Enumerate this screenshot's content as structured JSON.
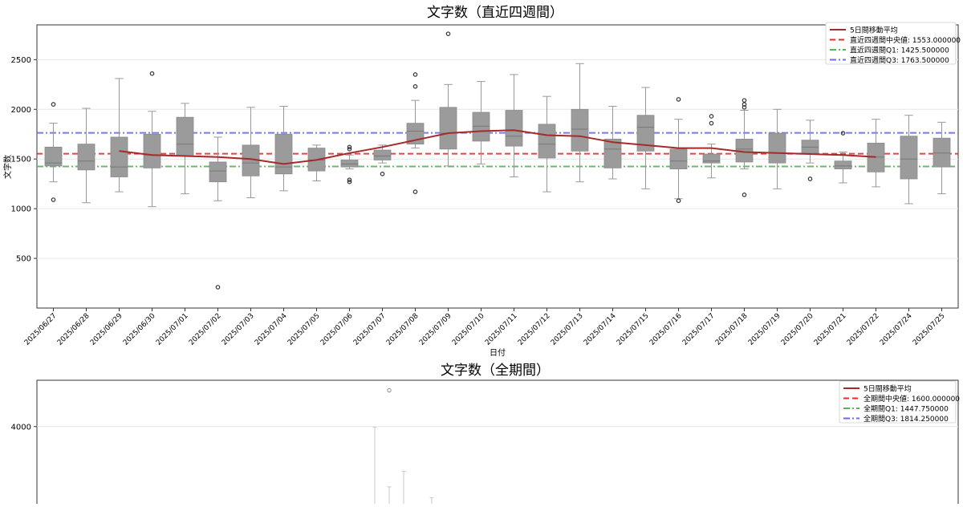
{
  "chart_data": [
    {
      "type": "box",
      "title": "文字数（直近四週間）",
      "xlabel": "日付",
      "ylabel": "文字数",
      "ylim": [
        0,
        2850
      ],
      "yticks": [
        500,
        1000,
        1500,
        2000,
        2500
      ],
      "grid": true,
      "legend_position": "top-right",
      "categories": [
        "2025/06/27",
        "2025/06/28",
        "2025/06/29",
        "2025/06/30",
        "2025/07/01",
        "2025/07/02",
        "2025/07/03",
        "2025/07/04",
        "2025/07/05",
        "2025/07/06",
        "2025/07/07",
        "2025/07/08",
        "2025/07/09",
        "2025/07/10",
        "2025/07/11",
        "2025/07/12",
        "2025/07/13",
        "2025/07/14",
        "2025/07/15",
        "2025/07/16",
        "2025/07/17",
        "2025/07/18",
        "2025/07/19",
        "2025/07/20",
        "2025/07/21",
        "2025/07/22",
        "2025/07/24",
        "2025/07/25"
      ],
      "boxes": [
        {
          "whislo": 1270,
          "q1": 1430,
          "med": 1460,
          "q3": 1620,
          "whishi": 1860,
          "fliers": [
            1090,
            2050
          ]
        },
        {
          "whislo": 1060,
          "q1": 1390,
          "med": 1480,
          "q3": 1650,
          "whishi": 2010,
          "fliers": []
        },
        {
          "whislo": 1170,
          "q1": 1320,
          "med": 1420,
          "q3": 1720,
          "whishi": 2310,
          "fliers": []
        },
        {
          "whislo": 1020,
          "q1": 1410,
          "med": 1540,
          "q3": 1750,
          "whishi": 1980,
          "fliers": [
            2360
          ]
        },
        {
          "whislo": 1150,
          "q1": 1530,
          "med": 1650,
          "q3": 1920,
          "whishi": 2060,
          "fliers": []
        },
        {
          "whislo": 1080,
          "q1": 1270,
          "med": 1380,
          "q3": 1470,
          "whishi": 1720,
          "fliers": [
            210
          ]
        },
        {
          "whislo": 1110,
          "q1": 1330,
          "med": 1460,
          "q3": 1640,
          "whishi": 2020,
          "fliers": []
        },
        {
          "whislo": 1180,
          "q1": 1350,
          "med": 1420,
          "q3": 1750,
          "whishi": 2030,
          "fliers": []
        },
        {
          "whislo": 1280,
          "q1": 1380,
          "med": 1490,
          "q3": 1610,
          "whishi": 1640,
          "fliers": []
        },
        {
          "whislo": 1400,
          "q1": 1420,
          "med": 1450,
          "q3": 1490,
          "whishi": 1540,
          "fliers": [
            1270,
            1290,
            1600,
            1620
          ]
        },
        {
          "whislo": 1460,
          "q1": 1490,
          "med": 1530,
          "q3": 1590,
          "whishi": 1640,
          "fliers": [
            1350
          ]
        },
        {
          "whislo": 1610,
          "q1": 1650,
          "med": 1780,
          "q3": 1860,
          "whishi": 2090,
          "fliers": [
            1170,
            2230,
            2350
          ]
        },
        {
          "whislo": 1430,
          "q1": 1600,
          "med": 1760,
          "q3": 2020,
          "whishi": 2250,
          "fliers": [
            2760
          ]
        },
        {
          "whislo": 1450,
          "q1": 1680,
          "med": 1830,
          "q3": 1970,
          "whishi": 2280,
          "fliers": []
        },
        {
          "whislo": 1320,
          "q1": 1630,
          "med": 1730,
          "q3": 1990,
          "whishi": 2350,
          "fliers": []
        },
        {
          "whislo": 1170,
          "q1": 1510,
          "med": 1650,
          "q3": 1850,
          "whishi": 2130,
          "fliers": []
        },
        {
          "whislo": 1270,
          "q1": 1580,
          "med": 1800,
          "q3": 2000,
          "whishi": 2460,
          "fliers": []
        },
        {
          "whislo": 1300,
          "q1": 1410,
          "med": 1600,
          "q3": 1700,
          "whishi": 2030,
          "fliers": []
        },
        {
          "whislo": 1200,
          "q1": 1580,
          "med": 1820,
          "q3": 1940,
          "whishi": 2220,
          "fliers": []
        },
        {
          "whislo": 1100,
          "q1": 1400,
          "med": 1480,
          "q3": 1600,
          "whishi": 1900,
          "fliers": [
            1080,
            2100
          ]
        },
        {
          "whislo": 1310,
          "q1": 1460,
          "med": 1480,
          "q3": 1550,
          "whishi": 1650,
          "fliers": [
            1860,
            1930
          ]
        },
        {
          "whislo": 1400,
          "q1": 1470,
          "med": 1600,
          "q3": 1700,
          "whishi": 1990,
          "fliers": [
            1140,
            2020,
            2050,
            2090
          ]
        },
        {
          "whislo": 1200,
          "q1": 1460,
          "med": 1560,
          "q3": 1760,
          "whishi": 2000,
          "fliers": []
        },
        {
          "whislo": 1460,
          "q1": 1560,
          "med": 1620,
          "q3": 1690,
          "whishi": 1890,
          "fliers": [
            1300
          ]
        },
        {
          "whislo": 1260,
          "q1": 1400,
          "med": 1430,
          "q3": 1480,
          "whishi": 1570,
          "fliers": [
            1760
          ]
        },
        {
          "whislo": 1220,
          "q1": 1370,
          "med": 1520,
          "q3": 1660,
          "whishi": 1900,
          "fliers": []
        },
        {
          "whislo": 1050,
          "q1": 1300,
          "med": 1500,
          "q3": 1730,
          "whishi": 1940,
          "fliers": []
        },
        {
          "whislo": 1150,
          "q1": 1420,
          "med": 1560,
          "q3": 1710,
          "whishi": 1870,
          "fliers": []
        }
      ],
      "moving_average": {
        "name": "5日間移動平均",
        "color": "#a52a2a",
        "start_index": 2,
        "values": [
          1580,
          1540,
          1530,
          1520,
          1500,
          1450,
          1490,
          1560,
          1620,
          1690,
          1760,
          1780,
          1790,
          1740,
          1730,
          1670,
          1640,
          1610,
          1610,
          1570,
          1560,
          1550,
          1540,
          1520
        ]
      },
      "reference_lines": [
        {
          "name": "直近四週間中央値: 1553.000000",
          "value": 1553,
          "color": "#e62e2e",
          "style": "dashed"
        },
        {
          "name": "直近四週間Q1: 1425.500000",
          "value": 1425.5,
          "color": "#5ab35a",
          "style": "dashdot"
        },
        {
          "name": "直近四週間Q3: 1763.500000",
          "value": 1763.5,
          "color": "#6b6bf0",
          "style": "dashdot"
        }
      ]
    },
    {
      "type": "box",
      "title": "文字数（全期間）",
      "yticks": [
        4000
      ],
      "grid": true,
      "legend_position": "top-right",
      "moving_average": {
        "name": "5日間移動平均",
        "color": "#a52a2a"
      },
      "reference_lines": [
        {
          "name": "全期間中央値: 1600.000000",
          "value": 1600,
          "color": "#e62e2e",
          "style": "dashed"
        },
        {
          "name": "全期間Q1: 1447.750000",
          "value": 1447.75,
          "color": "#5ab35a",
          "style": "dashdot"
        },
        {
          "name": "全期間Q3: 1814.250000",
          "value": 1814.25,
          "color": "#6b6bf0",
          "style": "dashdot"
        }
      ],
      "partial_whiskers": [
        {
          "value": 3990
        },
        {
          "value": 3220
        },
        {
          "value": 3420
        },
        {
          "value": 3080
        }
      ],
      "fliers": [
        4470
      ],
      "ylim": [
        3000,
        4600
      ]
    }
  ]
}
